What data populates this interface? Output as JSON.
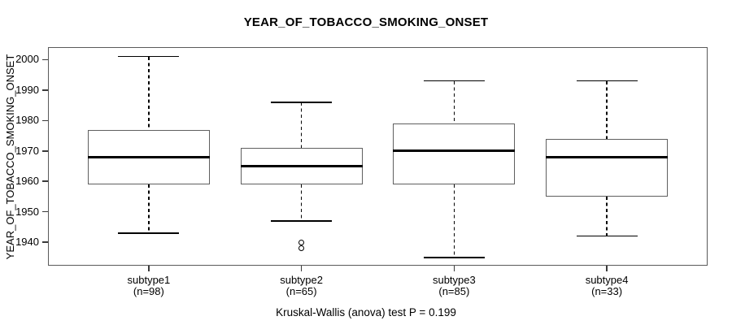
{
  "title": "YEAR_OF_TOBACCO_SMOKING_ONSET",
  "footer_note": "Kruskal-Wallis (anova) test P = 0.199",
  "chart_data": {
    "type": "boxplot",
    "title": "YEAR_OF_TOBACCO_SMOKING_ONSET",
    "ylabel": "YEAR_OF_TOBACCO_SMOKING_ONSET",
    "xlabel": "",
    "annotation": "Kruskal-Wallis (anova) test P = 0.199",
    "ylim": [
      1932.3,
      2004.1
    ],
    "yticks": [
      1940,
      1950,
      1960,
      1970,
      1980,
      1990,
      2000
    ],
    "grid": false,
    "legend": "none",
    "categories": [
      {
        "label": "subtype1",
        "sublabel": "(n=98)",
        "n": 98,
        "whisker_low": 1943,
        "q1": 1959,
        "median": 1968,
        "q3": 1977,
        "whisker_high": 2001,
        "outliers": []
      },
      {
        "label": "subtype2",
        "sublabel": "(n=65)",
        "n": 65,
        "whisker_low": 1947,
        "q1": 1959,
        "median": 1965,
        "q3": 1971,
        "whisker_high": 1986,
        "outliers": [
          1940,
          1938
        ]
      },
      {
        "label": "subtype3",
        "sublabel": "(n=85)",
        "n": 85,
        "whisker_low": 1935,
        "q1": 1959,
        "median": 1970,
        "q3": 1979,
        "whisker_high": 1993,
        "outliers": []
      },
      {
        "label": "subtype4",
        "sublabel": "(n=33)",
        "n": 33,
        "whisker_low": 1942,
        "q1": 1955,
        "median": 1968,
        "q3": 1974,
        "whisker_high": 1993,
        "outliers": []
      }
    ],
    "colors": {
      "background": "#ffffff",
      "text": "#000000",
      "box_border": "#5f5f5f",
      "median": "#000000",
      "whisker": "#000000",
      "axis": "#3a3a3a"
    }
  }
}
